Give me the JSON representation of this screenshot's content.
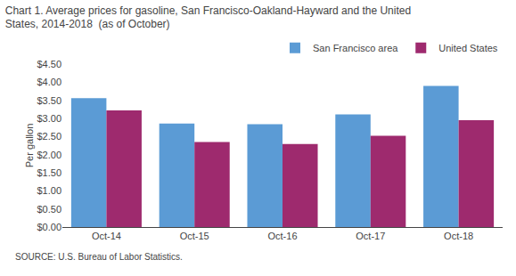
{
  "chart_data": {
    "type": "bar",
    "title": "Chart 1. Average prices for gasoline, San Francisco-Oakland-Hayward and the United\nStates, 2014-2018  (as of October)",
    "ylabel": "Per gallon",
    "source": "SOURCE: U.S. Bureau of Labor Statistics.",
    "categories": [
      "Oct-14",
      "Oct-15",
      "Oct-16",
      "Oct-17",
      "Oct-18"
    ],
    "series": [
      {
        "name": "San Francisco area",
        "color": "#5B9BD5",
        "values": [
          3.56,
          2.86,
          2.84,
          3.11,
          3.9
        ]
      },
      {
        "name": "United States",
        "color": "#9E2A6E",
        "values": [
          3.22,
          2.35,
          2.29,
          2.52,
          2.95
        ]
      }
    ],
    "ylim": [
      0,
      4.5
    ],
    "yticks": [
      {
        "value": 0.0,
        "label": "$0.00"
      },
      {
        "value": 0.5,
        "label": "$0.50"
      },
      {
        "value": 1.0,
        "label": "$1.00"
      },
      {
        "value": 1.5,
        "label": "$1.50"
      },
      {
        "value": 2.0,
        "label": "$2.00"
      },
      {
        "value": 2.5,
        "label": "$2.50"
      },
      {
        "value": 3.0,
        "label": "$3.00"
      },
      {
        "value": 3.5,
        "label": "$3.50"
      },
      {
        "value": 4.0,
        "label": "$4.00"
      },
      {
        "value": 4.5,
        "label": "$4.50"
      }
    ],
    "grid": false,
    "legend": "upper right"
  }
}
